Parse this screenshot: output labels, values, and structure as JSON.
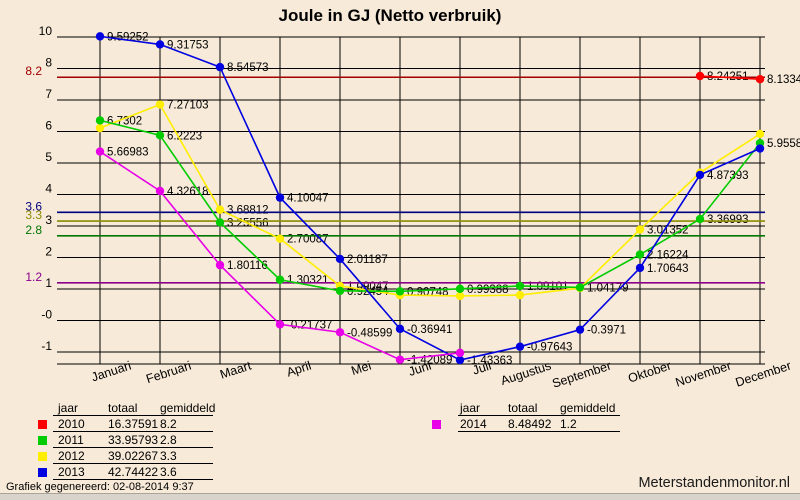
{
  "page": {
    "title": "Joule in GJ (Netto verbruik)",
    "footer": "Grafiek gegenereerd: 02-08-2014 9:37",
    "watermark": "Meterstandenmonitor.nl",
    "background": "#f7ead8"
  },
  "legend": {
    "headers": [
      "jaar",
      "totaal",
      "gemiddeld"
    ]
  },
  "chart_data": {
    "type": "line",
    "title": "Joule in GJ (Netto verbruik)",
    "categories": [
      "Januari",
      "Februari",
      "Maart",
      "April",
      "Mei",
      "Juni",
      "Juli",
      "Augustus",
      "September",
      "Oktober",
      "November",
      "December"
    ],
    "y_axis_tick_labels": [
      "10",
      "8",
      "7",
      "6",
      "5",
      "4",
      "3",
      "2",
      "1",
      "-0",
      "-1"
    ],
    "ylim": [
      -1.6,
      9.6
    ],
    "grid": true,
    "legend_position": "bottom",
    "series": [
      {
        "name": "2010",
        "color": "#ff0000",
        "avg_line_color": "#a00000",
        "totaal": "16.37591",
        "gemiddeld": "8.2",
        "gemiddeld_value": 8.2,
        "values": [
          null,
          null,
          null,
          null,
          null,
          null,
          null,
          null,
          null,
          null,
          8.24251,
          8.1334
        ],
        "point_labels": [
          null,
          null,
          null,
          null,
          null,
          null,
          null,
          null,
          null,
          null,
          "8.24251",
          "8.1334"
        ]
      },
      {
        "name": "2011",
        "color": "#00cc00",
        "avg_line_color": "#007700",
        "totaal": "33.95793",
        "gemiddeld": "2.8",
        "gemiddeld_value": 2.8,
        "values": [
          6.7302,
          6.2223,
          3.25556,
          1.30321,
          0.92454,
          0.90748,
          0.99388,
          1.09101,
          1.04179,
          2.16224,
          3.36993,
          5.9558
        ],
        "point_labels": [
          "6.7302",
          "6.2223",
          "3.25556",
          "1.30321",
          "0.92454",
          "0.90748",
          "0.99388",
          "1.09101",
          "1.04179",
          "2.16224",
          "3.36993",
          "5.9558"
        ]
      },
      {
        "name": "2012",
        "color": "#ffee00",
        "avg_line_color": "#8b8b00",
        "totaal": "39.02267",
        "gemiddeld": "3.3",
        "gemiddeld_value": 3.3,
        "values": [
          6.47,
          7.27103,
          3.68812,
          2.70087,
          1.09047,
          0.78,
          0.75,
          0.78,
          1.02,
          3.01352,
          4.95,
          6.27
        ],
        "point_labels": [
          null,
          "7.27103",
          "3.68812",
          "2.70087",
          "1.09047",
          null,
          null,
          null,
          null,
          "3.01352",
          null,
          null
        ]
      },
      {
        "name": "2013",
        "color": "#0000e0",
        "avg_line_color": "#000080",
        "totaal": "42.74422",
        "gemiddeld": "3.6",
        "gemiddeld_value": 3.6,
        "values": [
          9.59252,
          9.31753,
          8.54573,
          4.10047,
          2.01187,
          -0.36941,
          -1.43363,
          -0.97643,
          -0.3971,
          1.70643,
          4.87393,
          5.77231
        ],
        "point_labels": [
          "9.59252",
          "9.31753",
          "8.54573",
          "4.10047",
          "2.01187",
          "-0.36941",
          "-1.43363",
          "-0.97643",
          "-0.3971",
          "1.70643",
          "4.87393",
          null
        ]
      },
      {
        "name": "2014",
        "color": "#e800e8",
        "avg_line_color": "#8b008b",
        "totaal": "8.48492",
        "gemiddeld": "1.2",
        "gemiddeld_value": 1.2,
        "values": [
          5.66983,
          4.32618,
          1.80116,
          -0.21737,
          -0.48599,
          -1.42089,
          -1.188,
          null,
          null,
          null,
          null,
          null
        ],
        "point_labels": [
          "5.66983",
          "4.32618",
          "1.80116",
          "-0.21737",
          "-0.48599",
          "-1.42089",
          null,
          null,
          null,
          null,
          null,
          null
        ]
      }
    ]
  }
}
